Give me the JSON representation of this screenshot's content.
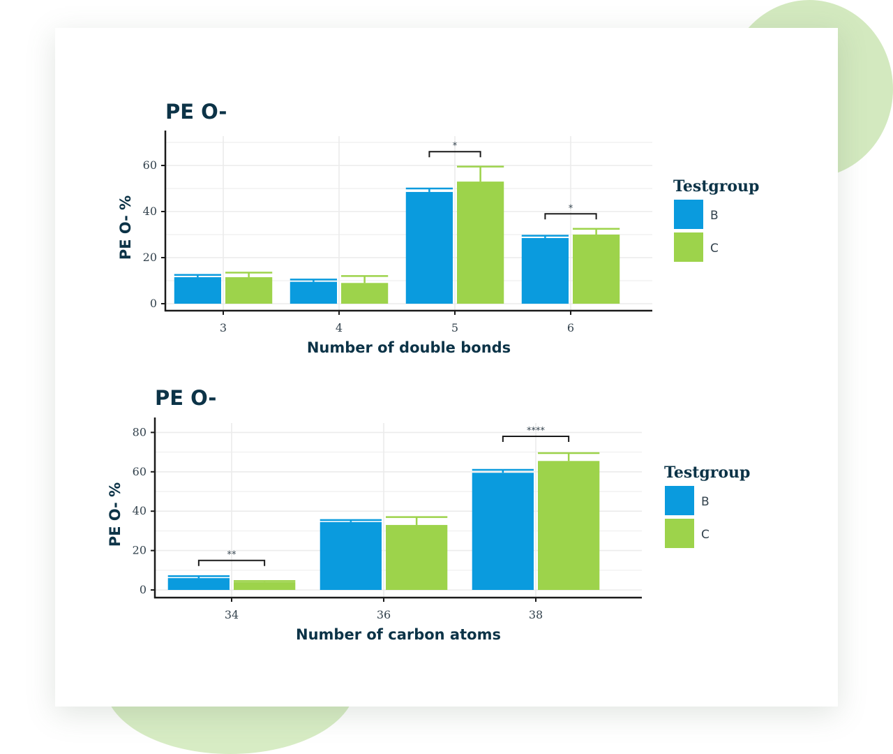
{
  "colors": {
    "B": "#0a9bde",
    "C": "#9dd34b",
    "axis": "#1a1a1a",
    "grid": "#ebebeb",
    "heading": "#0c3347"
  },
  "chart_data": [
    {
      "type": "bar",
      "title": "PE O-",
      "xlabel": "Number of double bonds",
      "ylabel": "PE O- %",
      "categories": [
        "3",
        "4",
        "5",
        "6"
      ],
      "yticks": [
        "0",
        "20",
        "40",
        "60"
      ],
      "ylim": [
        0,
        72
      ],
      "grid": true,
      "legend": {
        "title": "Testgroup",
        "position": "right",
        "entries": [
          "B",
          "C"
        ]
      },
      "series": [
        {
          "name": "B",
          "values": [
            11.5,
            9.5,
            48.5,
            28.5
          ],
          "errors": [
            1.0,
            1.0,
            1.5,
            1.0
          ]
        },
        {
          "name": "C",
          "values": [
            11.5,
            9.0,
            53.0,
            30.0
          ],
          "errors": [
            2.0,
            3.0,
            6.5,
            2.5
          ]
        }
      ],
      "annotations": [
        {
          "category": "5",
          "label": "*",
          "bracket_y": 66
        },
        {
          "category": "6",
          "label": "*",
          "bracket_y": 39
        }
      ]
    },
    {
      "type": "bar",
      "title": "PE O-",
      "xlabel": "Number of carbon atoms",
      "ylabel": "PE O- %",
      "categories": [
        "34",
        "36",
        "38"
      ],
      "yticks": [
        "0",
        "20",
        "40",
        "60",
        "80"
      ],
      "ylim": [
        0,
        87
      ],
      "grid": true,
      "legend": {
        "title": "Testgroup",
        "position": "right",
        "entries": [
          "B",
          "C"
        ]
      },
      "series": [
        {
          "name": "B",
          "values": [
            6.0,
            34.5,
            59.5
          ],
          "errors": [
            1.0,
            1.0,
            1.5
          ]
        },
        {
          "name": "C",
          "values": [
            4.0,
            33.0,
            65.5
          ],
          "errors": [
            0.5,
            4.0,
            4.0
          ]
        }
      ],
      "annotations": [
        {
          "category": "34",
          "label": "**",
          "bracket_y": 15
        },
        {
          "category": "38",
          "label": "****",
          "bracket_y": 78
        }
      ]
    }
  ]
}
